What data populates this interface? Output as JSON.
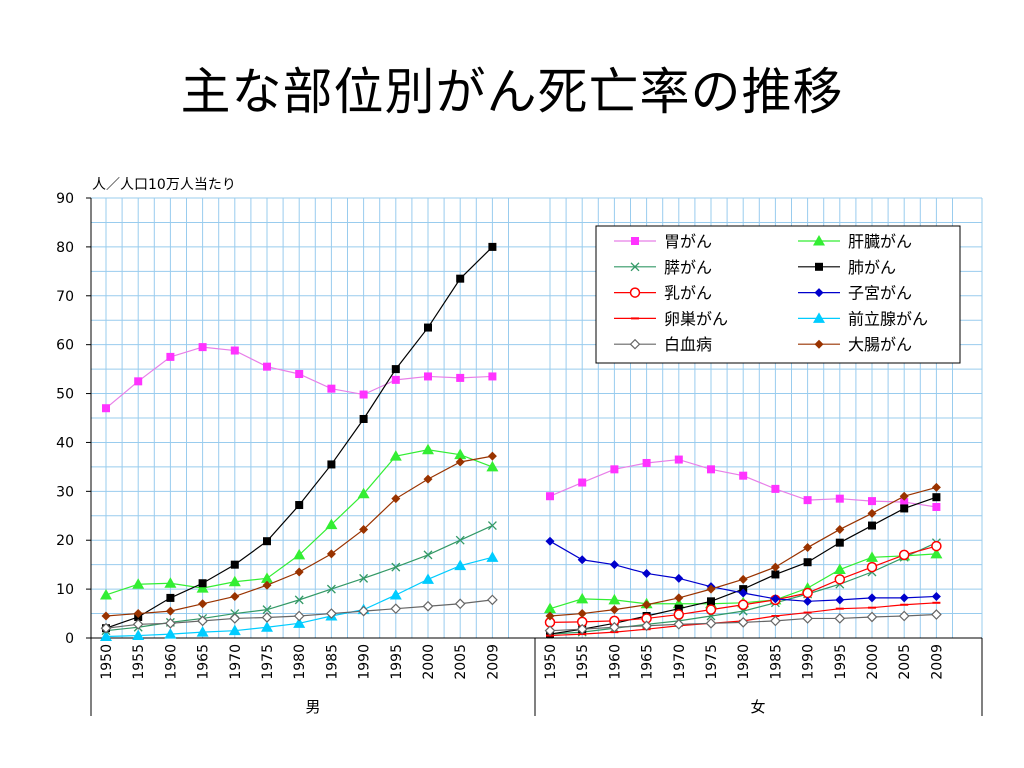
{
  "slide": {
    "title": "主な部位別がん死亡率の推移"
  },
  "chart_data": {
    "type": "line",
    "ylabel": "人／人口10万人当たり",
    "ylim": [
      0,
      90
    ],
    "yticks": [
      0,
      10,
      20,
      30,
      40,
      50,
      60,
      70,
      80,
      90
    ],
    "grid": true,
    "legend_position": "top-right",
    "x": [
      "1950",
      "1955",
      "1960",
      "1965",
      "1970",
      "1975",
      "1980",
      "1985",
      "1990",
      "1995",
      "2000",
      "2005",
      "2009"
    ],
    "groups": [
      "男",
      "女"
    ],
    "series": [
      {
        "name": "胃がん",
        "color": "#ff33ff",
        "marker": "square",
        "values": {
          "男": [
            47,
            52.5,
            57.5,
            59.5,
            58.8,
            55.5,
            54,
            51,
            49.8,
            52.8,
            53.5,
            53.2,
            53.5
          ],
          "女": [
            29,
            31.8,
            34.5,
            35.8,
            36.5,
            34.5,
            33.2,
            30.5,
            28.2,
            28.5,
            28,
            27.8,
            26.8
          ]
        }
      },
      {
        "name": "肝臓がん",
        "color": "#33ee33",
        "marker": "triangle",
        "values": {
          "男": [
            8.8,
            11,
            11.2,
            10.2,
            11.5,
            12.2,
            17,
            23.2,
            29.5,
            37.2,
            38.5,
            37.5,
            35
          ],
          "女": [
            6,
            8,
            7.8,
            7,
            7,
            7,
            7.2,
            7.8,
            10.2,
            14,
            16.5,
            16.8,
            17.2
          ]
        }
      },
      {
        "name": "膵がん",
        "color": "#339966",
        "marker": "x",
        "values": {
          "男": [
            1.5,
            2.2,
            3.2,
            4,
            5,
            5.8,
            7.8,
            10,
            12.2,
            14.5,
            17,
            20,
            23
          ],
          "女": [
            0.8,
            1.2,
            2,
            2.8,
            3.5,
            4.5,
            5.5,
            7.2,
            9,
            11,
            13.5,
            16.5,
            19.5
          ]
        }
      },
      {
        "name": "肺がん",
        "color": "#000000",
        "marker": "square",
        "values": {
          "男": [
            2,
            4.3,
            8.2,
            11.2,
            15,
            19.8,
            27.2,
            35.5,
            44.8,
            55,
            63.5,
            73.5,
            80
          ],
          "女": [
            0.8,
            1.8,
            3,
            4.5,
            6,
            7.5,
            10,
            13,
            15.5,
            19.5,
            23,
            26.5,
            28.8
          ]
        }
      },
      {
        "name": "乳がん",
        "color": "#ff0000",
        "marker": "circle",
        "values": {
          "女": [
            3.2,
            3.3,
            3.5,
            4,
            4.8,
            5.8,
            6.8,
            7.8,
            9.2,
            12,
            14.5,
            17,
            18.8
          ]
        }
      },
      {
        "name": "子宮がん",
        "color": "#0000cc",
        "marker": "diamond",
        "values": {
          "女": [
            19.8,
            16,
            15,
            13.2,
            12.2,
            10.5,
            9.2,
            8,
            7.5,
            7.8,
            8.2,
            8.2,
            8.5
          ]
        }
      },
      {
        "name": "卵巣がん",
        "color": "#ff0000",
        "marker": "dash",
        "values": {
          "女": [
            0.5,
            0.8,
            1.2,
            1.8,
            2.5,
            3,
            3.5,
            4.5,
            5.2,
            6,
            6.2,
            6.8,
            7.2
          ]
        }
      },
      {
        "name": "前立腺がん",
        "color": "#00ccff",
        "marker": "triangle",
        "values": {
          "男": [
            0.3,
            0.5,
            0.8,
            1.2,
            1.5,
            2.2,
            3,
            4.5,
            5.8,
            8.8,
            12,
            14.8,
            16.5
          ]
        }
      },
      {
        "name": "白血病",
        "color": "#666666",
        "marker": "diamond-open",
        "values": {
          "男": [
            2,
            2.8,
            3,
            3.5,
            4,
            4.2,
            4.5,
            5,
            5.5,
            6,
            6.5,
            7,
            7.8
          ],
          "女": [
            1.5,
            1.8,
            2.2,
            2.5,
            2.8,
            3,
            3.2,
            3.5,
            4,
            4,
            4.3,
            4.5,
            4.8
          ]
        }
      },
      {
        "name": "大腸がん",
        "color": "#993300",
        "marker": "diamond",
        "values": {
          "男": [
            4.5,
            5,
            5.5,
            7,
            8.5,
            10.8,
            13.5,
            17.2,
            22.2,
            28.5,
            32.5,
            36,
            37.2
          ],
          "女": [
            4.5,
            5,
            5.8,
            6.8,
            8.2,
            10,
            12,
            14.5,
            18.5,
            22.2,
            25.5,
            29,
            30.8
          ]
        }
      }
    ]
  }
}
